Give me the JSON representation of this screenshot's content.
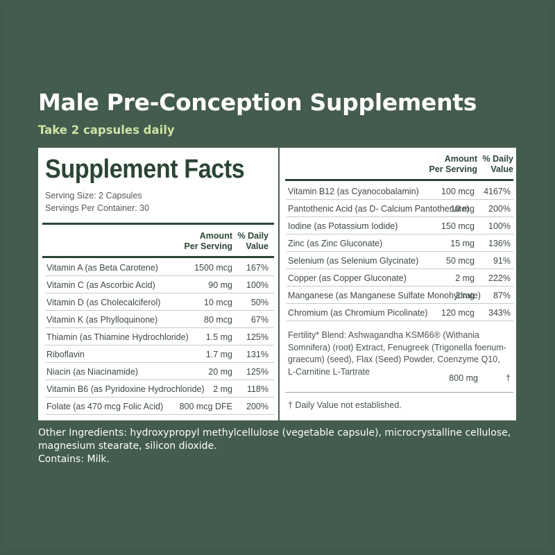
{
  "heading": {
    "title": "Male Pre-Conception Supplements",
    "subtitle": "Take 2 capsules daily"
  },
  "facts": {
    "title": "Supplement Facts",
    "serving_size": "Serving Size: 2 Capsules",
    "servings_per_container": "Servings Per Container: 30",
    "col_amount_1": "Amount",
    "col_amount_2": "Per Serving",
    "col_dv_1": "% Daily",
    "col_dv_2": "Value",
    "left_rows": [
      {
        "name": "Vitamin A (as Beta Carotene)",
        "amount": "1500 mcg",
        "dv": "167%"
      },
      {
        "name": "Vitamin C (as Ascorbic Acid)",
        "amount": "90 mg",
        "dv": "100%"
      },
      {
        "name": "Vitamin D (as Cholecalciferol)",
        "amount": "10 mcg",
        "dv": "50%"
      },
      {
        "name": "Vitamin K (as Phylloquinone)",
        "amount": "80 mcg",
        "dv": "67%"
      },
      {
        "name": "Thiamin (as Thiamine Hydrochloride)",
        "amount": "1.5 mg",
        "dv": "125%"
      },
      {
        "name": "Riboflavin",
        "amount": "1.7 mg",
        "dv": "131%"
      },
      {
        "name": "Niacin (as Niacinamide)",
        "amount": "20 mg",
        "dv": "125%"
      },
      {
        "name": "Vitamin B6 (as Pyridoxine Hydrochloride)",
        "amount": "2 mg",
        "dv": "118%"
      },
      {
        "name": "Folate (as 470 mcg Folic Acid)",
        "amount": "800 mcg DFE",
        "dv": "200%"
      }
    ],
    "right_rows": [
      {
        "name": "Vitamin B12 (as Cyanocobalamin)",
        "amount": "100 mcg",
        "dv": "4167%"
      },
      {
        "name": "Pantothenic Acid (as D- Calcium Pantothenate)",
        "amount": "10 mg",
        "dv": "200%"
      },
      {
        "name": "Iodine (as Potassium Iodide)",
        "amount": "150 mcg",
        "dv": "100%"
      },
      {
        "name": "Zinc (as Zinc Gluconate)",
        "amount": "15 mg",
        "dv": "136%"
      },
      {
        "name": "Selenium (as Selenium Glycinate)",
        "amount": "50 mcg",
        "dv": "91%"
      },
      {
        "name": "Copper (as Copper Gluconate)",
        "amount": "2 mg",
        "dv": "222%"
      },
      {
        "name": "Manganese (as Manganese Sulfate Monohydrate)",
        "amount": "2 mg",
        "dv": "87%"
      },
      {
        "name": "Chromium (as Chromium Picolinate)",
        "amount": "120 mcg",
        "dv": "343%"
      }
    ],
    "blend_text": "Fertility* Blend: Ashwagandha KSM66® (Withania Somnifera) (root) Extract, Fenugreek (Trigonella foenum-graecum) (seed), Flax (Seed) Powder, Coenzyme Q10, L-Carnitine L-Tartrate",
    "blend_amount": "800 mg",
    "blend_dv": "†",
    "footnote": "† Daily Value not established."
  },
  "other": {
    "ingredients": "Other Ingredients: hydroxypropyl methylcellulose (vegetable capsule), microcrystalline cellulose, magnesium stearate, silicon dioxide.",
    "contains": "Contains: Milk."
  },
  "colors": {
    "background": "#445c4e",
    "title": "#ffffff",
    "subtitle": "#cde3a4",
    "panel": "#ffffff",
    "facts_text": "#2b4535"
  }
}
